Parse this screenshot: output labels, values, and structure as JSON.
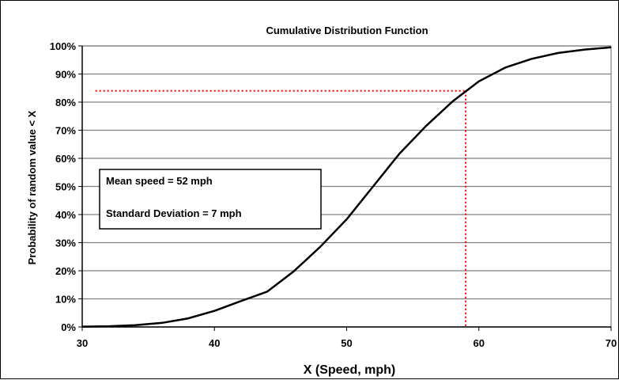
{
  "chart_data": {
    "type": "line",
    "title": "Cumulative Distribution Function",
    "xlabel": "X (Speed, mph)",
    "ylabel": "Probability of random value < X",
    "xlim": [
      30,
      70
    ],
    "ylim": [
      0,
      100
    ],
    "x_ticks": [
      "30",
      "40",
      "50",
      "60",
      "70"
    ],
    "y_ticks": [
      "0%",
      "10%",
      "20%",
      "30%",
      "40%",
      "50%",
      "60%",
      "70%",
      "80%",
      "90%",
      "100%"
    ],
    "grid": "horizontal",
    "series": [
      {
        "color": "#000000",
        "x": [
          30,
          32,
          34,
          36,
          38,
          40,
          42,
          44,
          46,
          48,
          50,
          52,
          54,
          56,
          58,
          60,
          62,
          64,
          66,
          68,
          70
        ],
        "y": [
          0.09,
          0.25,
          0.62,
          1.43,
          3.04,
          5.72,
          9.21,
          12.6,
          19.8,
          28.5,
          38.3,
          50.0,
          61.7,
          71.5,
          80.2,
          87.4,
          92.3,
          95.4,
          97.5,
          98.7,
          99.5
        ]
      }
    ],
    "reference_lines": {
      "color": "#ff0000",
      "style": "dotted",
      "x": 59,
      "y": 84
    },
    "annotation": {
      "lines": [
        "Mean speed = 52 mph",
        "Standard Deviation = 7 mph"
      ]
    }
  }
}
